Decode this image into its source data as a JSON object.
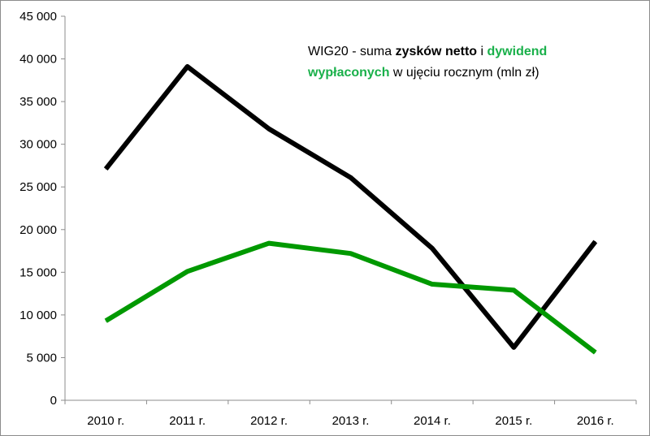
{
  "chart_data": {
    "type": "line",
    "title": {
      "part1": "WIG20 - suma ",
      "part2": "zysków netto",
      "part3": " i ",
      "part4": "dywidend",
      "part5": "wypłaconych",
      "part6": " w ujęciu rocznym (mln zł)"
    },
    "categories": [
      "2010 r.",
      "2011 r.",
      "2012 r.",
      "2013 r.",
      "2014 r.",
      "2015 r.",
      "2016 r."
    ],
    "ylim": [
      0,
      45000
    ],
    "yticks": [
      0,
      5000,
      10000,
      15000,
      20000,
      25000,
      30000,
      35000,
      40000,
      45000
    ],
    "ytick_labels": [
      "0",
      "5 000",
      "10 000",
      "15 000",
      "20 000",
      "25 000",
      "30 000",
      "35 000",
      "40 000",
      "45 000"
    ],
    "grid": false,
    "legend": "none",
    "series": [
      {
        "name": "zysków netto",
        "color": "#000000",
        "values": [
          27100,
          39100,
          31800,
          26100,
          17800,
          6200,
          18600
        ]
      },
      {
        "name": "dywidend wypłaconych",
        "color": "#009900",
        "values": [
          9300,
          15100,
          18400,
          17200,
          13600,
          12900,
          5600
        ]
      }
    ]
  }
}
